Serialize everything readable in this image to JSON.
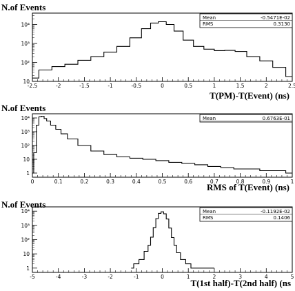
{
  "chart_data": [
    {
      "type": "histogram",
      "ylabel": "N.of Events",
      "xlabel": "T(PM)-T(Event) (ns)",
      "xlim": [
        -2.5,
        2.5
      ],
      "ylim": [
        10,
        40000
      ],
      "yscale": "log",
      "xtick_labels": [
        "-2.5",
        "-2",
        "-1.5",
        "-1",
        "-0.5",
        "0",
        "0.5",
        "1",
        "1.5",
        "2",
        "2.5"
      ],
      "ytick_labels": [
        "10",
        "10²",
        "10³",
        "10⁴"
      ],
      "stats": [
        {
          "label": "Mean",
          "value": "-0.5471E-02"
        },
        {
          "label": "RMS",
          "value": "0.3130"
        }
      ],
      "x": [
        -2.5,
        -2.25,
        -2.0,
        -1.75,
        -1.5,
        -1.25,
        -1.0,
        -0.75,
        -0.5,
        -0.3,
        -0.15,
        0.0,
        0.15,
        0.3,
        0.5,
        0.7,
        0.9,
        1.1,
        1.3,
        1.5,
        1.75,
        2.0,
        2.25,
        2.5
      ],
      "values": [
        15,
        40,
        60,
        80,
        130,
        200,
        350,
        700,
        2000,
        6000,
        12000,
        14000,
        10000,
        4500,
        1500,
        700,
        500,
        420,
        430,
        380,
        200,
        120,
        55,
        18
      ]
    },
    {
      "type": "histogram",
      "ylabel": "N.of Events",
      "xlabel": "RMS of T(Event) (ns)",
      "xlim": [
        0,
        1.0
      ],
      "ylim": [
        0.5,
        20000
      ],
      "yscale": "log",
      "xtick_labels": [
        "0",
        "0.1",
        "0.2",
        "0.3",
        "0.4",
        "0.5",
        "0.6",
        "0.7",
        "0.8",
        "0.9",
        "1"
      ],
      "ytick_labels": [
        "1",
        "10",
        "10²",
        "10³",
        "10⁴"
      ],
      "stats": [
        {
          "label": "Mean",
          "value": "0.6763E-01"
        }
      ],
      "x": [
        0.0,
        0.01,
        0.02,
        0.03,
        0.04,
        0.05,
        0.06,
        0.08,
        0.1,
        0.12,
        0.15,
        0.2,
        0.25,
        0.3,
        0.35,
        0.4,
        0.45,
        0.5,
        0.55,
        0.6,
        0.65,
        0.7,
        0.75,
        0.8,
        0.85,
        0.9,
        0.95,
        1.0
      ],
      "values": [
        1,
        30,
        3000,
        12000,
        13000,
        9000,
        6000,
        3000,
        1500,
        700,
        300,
        100,
        40,
        22,
        15,
        12,
        10,
        8,
        6,
        5,
        4,
        3,
        2.5,
        2,
        2,
        1.5,
        1.5,
        1
      ]
    },
    {
      "type": "histogram",
      "ylabel": "N.of Events",
      "xlabel": "T(1st half)-T(2nd half) (ns",
      "xlim": [
        -5,
        5
      ],
      "ylim": [
        0.5,
        20000
      ],
      "yscale": "log",
      "xtick_labels": [
        "-5",
        "-4",
        "-3",
        "-2",
        "-1",
        "0",
        "1",
        "2",
        "3",
        "4",
        "5"
      ],
      "ytick_labels": [
        "1",
        "10",
        "10²",
        "10³",
        "10⁴"
      ],
      "stats": [
        {
          "label": "Mean",
          "value": "-0.1192E-02"
        },
        {
          "label": "RMS",
          "value": "0.1406"
        }
      ],
      "x": [
        -1.2,
        -1.0,
        -0.8,
        -0.6,
        -0.5,
        -0.4,
        -0.3,
        -0.2,
        -0.1,
        0.0,
        0.1,
        0.2,
        0.3,
        0.4,
        0.5,
        0.6,
        0.8,
        1.0,
        1.2,
        1.5,
        2.0
      ],
      "values": [
        1,
        2,
        4,
        15,
        40,
        150,
        700,
        3000,
        7000,
        9000,
        6500,
        2800,
        650,
        140,
        40,
        12,
        4,
        2,
        1,
        1,
        1
      ]
    }
  ]
}
